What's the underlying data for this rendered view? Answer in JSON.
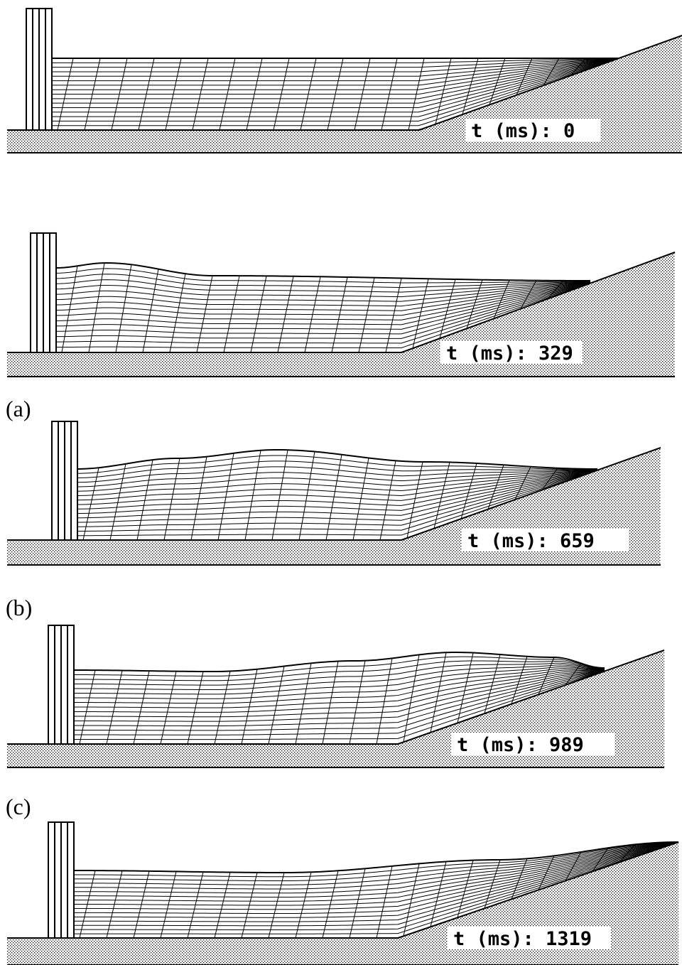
{
  "frames": [
    {
      "label": "t (ms): 0"
    },
    {
      "label": "t (ms): 329"
    },
    {
      "label": "t (ms): 659"
    },
    {
      "label": "t (ms): 989"
    },
    {
      "label": "t (ms): 1319"
    }
  ],
  "captions": [
    "(a)",
    "(b)",
    "(c)"
  ]
}
